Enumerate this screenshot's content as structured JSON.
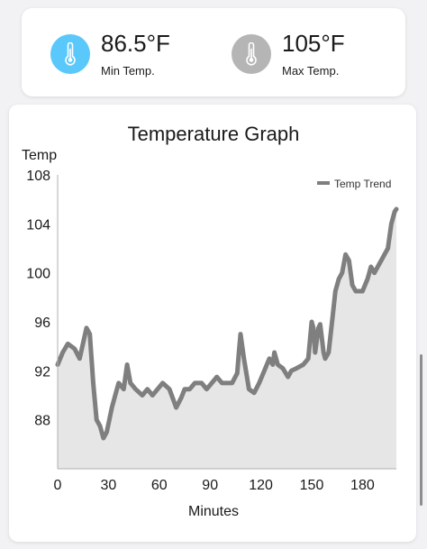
{
  "colors": {
    "min_icon_bg": "#5ac8fa",
    "max_icon_bg": "#b5b5b5",
    "series_line": "#7f7f7f",
    "series_fill": "#e6e6e6"
  },
  "stats": {
    "min": {
      "value": "86.5°F",
      "label": "Min Temp.",
      "icon": "thermometer-icon"
    },
    "max": {
      "value": "105°F",
      "label": "Max Temp.",
      "icon": "thermometer-icon"
    }
  },
  "chart_data": {
    "type": "area",
    "title": "Temperature Graph",
    "xlabel": "Minutes",
    "ylabel": "Temp",
    "xlim": [
      0,
      200
    ],
    "ylim": [
      84,
      108
    ],
    "x_ticks": [
      0,
      30,
      60,
      90,
      120,
      150,
      180
    ],
    "y_ticks": [
      88,
      92,
      96,
      100,
      104,
      108
    ],
    "grid": false,
    "legend": {
      "position": "top-right"
    },
    "series": [
      {
        "name": "Temp Trend",
        "x": [
          0,
          3,
          6,
          10,
          13,
          17,
          19,
          21,
          23,
          25,
          27,
          29,
          32,
          34,
          36,
          39,
          41,
          43,
          46,
          50,
          53,
          56,
          59,
          62,
          66,
          70,
          73,
          75,
          78,
          81,
          85,
          88,
          91,
          94,
          97,
          100,
          103,
          106,
          107,
          108,
          110,
          113,
          116,
          119,
          122,
          125,
          127,
          128,
          130,
          133,
          136,
          138,
          141,
          145,
          148,
          150,
          151,
          152,
          154,
          155,
          157,
          158,
          160,
          162,
          164,
          166,
          168,
          170,
          172,
          174,
          176,
          178,
          180,
          183,
          185,
          187,
          189,
          191,
          193,
          195,
          197,
          199,
          200
        ],
        "values": [
          92.5,
          93.5,
          94.2,
          93.8,
          93.0,
          95.5,
          95.0,
          91.0,
          88.0,
          87.5,
          86.5,
          87.0,
          89.0,
          90.0,
          91.0,
          90.5,
          92.5,
          91.0,
          90.5,
          90.0,
          90.5,
          90.0,
          90.5,
          91.0,
          90.5,
          89.0,
          89.8,
          90.5,
          90.5,
          91.0,
          91.0,
          90.5,
          91.0,
          91.5,
          91.0,
          91.0,
          91.0,
          91.8,
          93.5,
          95.0,
          93.0,
          90.5,
          90.2,
          91.0,
          92.0,
          93.0,
          92.5,
          93.5,
          92.5,
          92.2,
          91.5,
          92.0,
          92.2,
          92.5,
          93.0,
          96.0,
          95.5,
          93.5,
          95.5,
          95.8,
          93.5,
          93.0,
          93.5,
          96.0,
          98.5,
          99.5,
          100.0,
          101.5,
          101.0,
          99.0,
          98.5,
          98.5,
          98.5,
          99.5,
          100.5,
          100.0,
          100.5,
          101.0,
          101.5,
          102.0,
          104.0,
          105.0,
          105.2
        ]
      }
    ]
  }
}
